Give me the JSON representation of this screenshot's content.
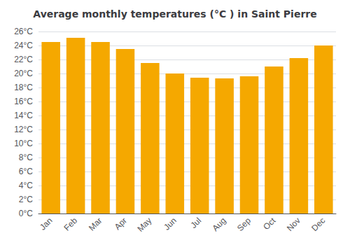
{
  "chart_data": {
    "type": "bar",
    "title": "Average monthly temperatures (°C ) in Saint Pierre",
    "categories": [
      "Jan",
      "Feb",
      "Mar",
      "Apr",
      "May",
      "Jun",
      "Jul",
      "Aug",
      "Sep",
      "Oct",
      "Nov",
      "Dec"
    ],
    "values": [
      24.5,
      25.1,
      24.5,
      23.5,
      21.5,
      20.0,
      19.4,
      19.3,
      19.6,
      21.0,
      22.2,
      24.0
    ],
    "color": "#F5A800",
    "ylim": [
      0,
      26
    ],
    "yticks": [
      {
        "value": 0,
        "label": "0°C"
      },
      {
        "value": 2,
        "label": "2°C"
      },
      {
        "value": 4,
        "label": "4°C"
      },
      {
        "value": 6,
        "label": "6°C"
      },
      {
        "value": 8,
        "label": "8°C"
      },
      {
        "value": 10,
        "label": "10°C"
      },
      {
        "value": 12,
        "label": "12°C"
      },
      {
        "value": 14,
        "label": "14°C"
      },
      {
        "value": 16,
        "label": "16°C"
      },
      {
        "value": 18,
        "label": "18°C"
      },
      {
        "value": 20,
        "label": "20°C"
      },
      {
        "value": 22,
        "label": "22°C"
      },
      {
        "value": 24,
        "label": "24°C"
      },
      {
        "value": 26,
        "label": "26°C"
      }
    ],
    "grid": true
  }
}
